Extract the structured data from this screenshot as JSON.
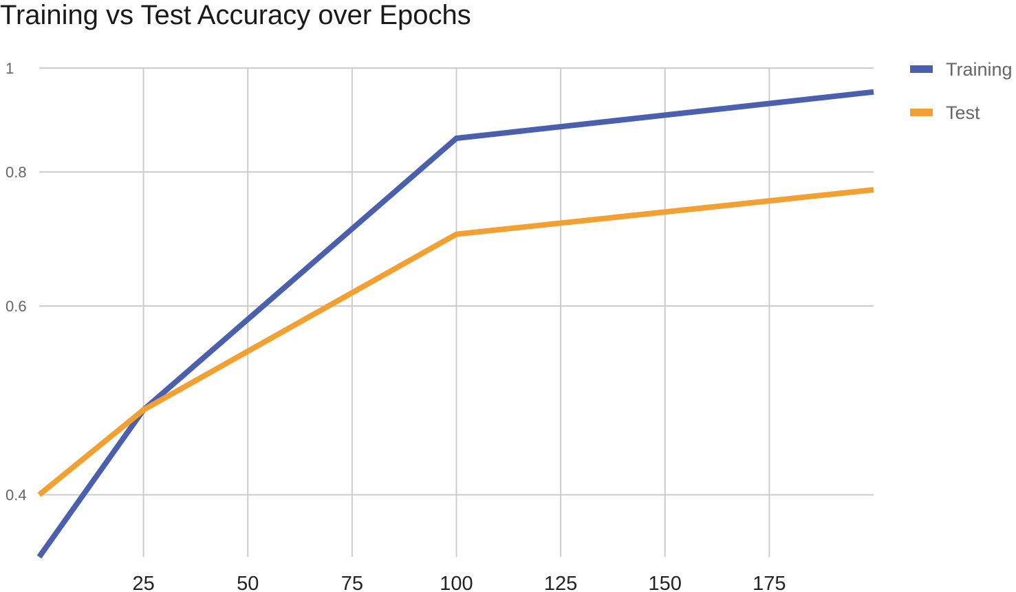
{
  "chart_data": {
    "type": "line",
    "title": "Training vs Test Accuracy over Epochs",
    "xlabel": "",
    "ylabel": "",
    "x": [
      0,
      25,
      100,
      200
    ],
    "xlim": [
      0,
      200
    ],
    "ylim": [
      0.35,
      1
    ],
    "x_ticks": [
      25,
      50,
      75,
      100,
      125,
      150,
      175
    ],
    "y_ticks": [
      1,
      0.8,
      0.6,
      0.4
    ],
    "y_tick_labels": [
      "1",
      "0.8",
      "0.6",
      "0.4"
    ],
    "y_scale": "log",
    "grid": true,
    "legend_position": "right",
    "series": [
      {
        "name": "Training",
        "color": "#4a5fad",
        "values": [
          0.35,
          0.48,
          0.86,
          0.95
        ]
      },
      {
        "name": "Test",
        "color": "#f3a032",
        "values": [
          0.4,
          0.48,
          0.7,
          0.77
        ]
      }
    ]
  }
}
